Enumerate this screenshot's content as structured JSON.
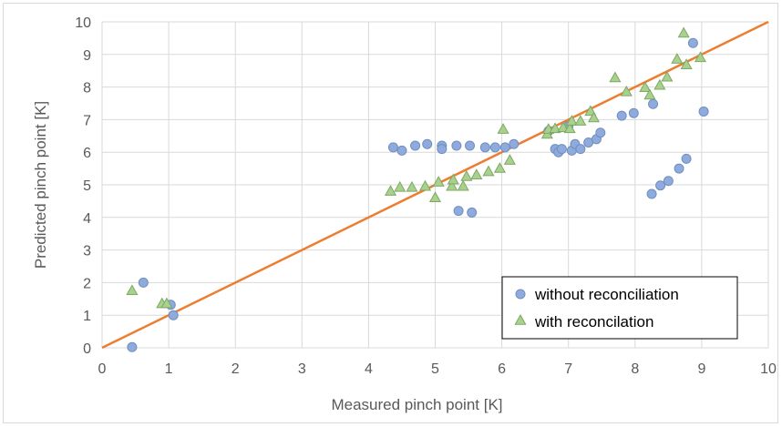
{
  "chart_data": {
    "type": "scatter",
    "title": "",
    "xlabel": "Measured pinch point [K]",
    "ylabel": "Predicted pinch point [K]",
    "xlim": [
      0,
      10
    ],
    "ylim": [
      0,
      10
    ],
    "xticks": [
      "0",
      "1",
      "2",
      "3",
      "4",
      "5",
      "6",
      "7",
      "8",
      "9",
      "10"
    ],
    "yticks": [
      "0",
      "1",
      "2",
      "3",
      "4",
      "5",
      "6",
      "7",
      "8",
      "9",
      "10"
    ],
    "grid": true,
    "legend_position": "bottom-right",
    "reference_line": {
      "x": [
        0,
        10
      ],
      "y": [
        0,
        10
      ],
      "color": "#ed7d31"
    },
    "series": [
      {
        "name": "without reconciliation",
        "marker": "circle",
        "color": "#8faadc",
        "edge": "#6f8fbf",
        "points": [
          [
            0.45,
            0.02
          ],
          [
            0.62,
            2.0
          ],
          [
            1.03,
            1.32
          ],
          [
            1.07,
            1.0
          ],
          [
            4.37,
            6.15
          ],
          [
            4.5,
            6.05
          ],
          [
            4.7,
            6.2
          ],
          [
            4.88,
            6.25
          ],
          [
            5.1,
            6.2
          ],
          [
            5.1,
            6.1
          ],
          [
            5.32,
            6.2
          ],
          [
            5.52,
            6.2
          ],
          [
            5.75,
            6.15
          ],
          [
            5.9,
            6.15
          ],
          [
            6.05,
            6.15
          ],
          [
            6.18,
            6.25
          ],
          [
            5.35,
            4.2
          ],
          [
            5.55,
            4.15
          ],
          [
            6.7,
            6.65
          ],
          [
            6.8,
            6.1
          ],
          [
            6.85,
            6.0
          ],
          [
            6.9,
            6.1
          ],
          [
            7.05,
            6.05
          ],
          [
            7.1,
            6.25
          ],
          [
            7.18,
            6.1
          ],
          [
            7.3,
            6.3
          ],
          [
            7.42,
            6.4
          ],
          [
            7.48,
            6.6
          ],
          [
            7.0,
            6.8
          ],
          [
            7.8,
            7.12
          ],
          [
            7.98,
            7.2
          ],
          [
            8.27,
            7.48
          ],
          [
            8.25,
            4.72
          ],
          [
            8.38,
            4.98
          ],
          [
            8.5,
            5.12
          ],
          [
            8.66,
            5.5
          ],
          [
            8.77,
            5.8
          ],
          [
            8.87,
            9.35
          ],
          [
            9.03,
            7.25
          ]
        ]
      },
      {
        "name": "with reconcilation",
        "marker": "triangle",
        "color": "#a9d18e",
        "edge": "#7fa765",
        "points": [
          [
            0.45,
            1.75
          ],
          [
            0.9,
            1.35
          ],
          [
            0.97,
            1.35
          ],
          [
            4.33,
            4.8
          ],
          [
            4.47,
            4.92
          ],
          [
            4.65,
            4.92
          ],
          [
            4.85,
            4.95
          ],
          [
            5.0,
            4.6
          ],
          [
            5.05,
            5.08
          ],
          [
            5.25,
            4.95
          ],
          [
            5.27,
            5.15
          ],
          [
            5.42,
            4.95
          ],
          [
            5.47,
            5.25
          ],
          [
            5.62,
            5.3
          ],
          [
            5.8,
            5.4
          ],
          [
            5.97,
            5.5
          ],
          [
            6.02,
            6.7
          ],
          [
            6.12,
            5.75
          ],
          [
            6.68,
            6.55
          ],
          [
            6.7,
            6.7
          ],
          [
            6.8,
            6.72
          ],
          [
            6.92,
            6.75
          ],
          [
            7.02,
            6.72
          ],
          [
            7.05,
            6.95
          ],
          [
            7.18,
            6.95
          ],
          [
            7.33,
            7.25
          ],
          [
            7.38,
            7.05
          ],
          [
            7.7,
            8.28
          ],
          [
            7.87,
            7.85
          ],
          [
            8.15,
            7.98
          ],
          [
            8.22,
            7.75
          ],
          [
            8.37,
            8.05
          ],
          [
            8.48,
            8.3
          ],
          [
            8.63,
            8.85
          ],
          [
            8.73,
            9.65
          ],
          [
            8.77,
            8.68
          ],
          [
            8.98,
            8.9
          ]
        ]
      }
    ]
  }
}
